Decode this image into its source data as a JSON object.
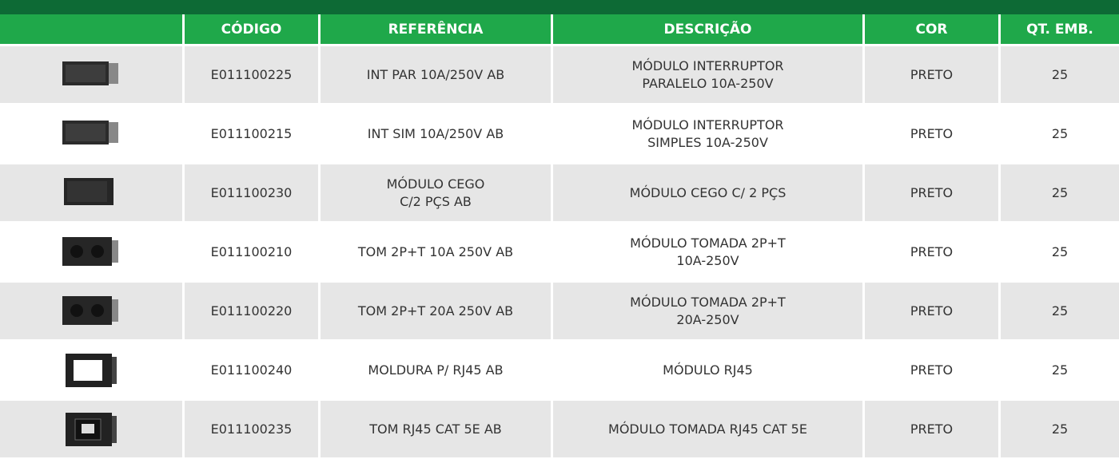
{
  "table": {
    "header": [
      "CÓDIGO",
      "REFERÊNCIA",
      "DESCRIÇÃO",
      "COR",
      "QT. EMB."
    ],
    "rows": [
      [
        "E011100225",
        "INT PAR 10A/250V AB",
        "MÓDULO INTERRUPTOR\nPARALELO 10A-250V",
        "PRETO",
        "25"
      ],
      [
        "E011100215",
        "INT SIM 10A/250V AB",
        "MÓDULO INTERRUPTOR\nSIMPLES 10A-250V",
        "PRETO",
        "25"
      ],
      [
        "E011100230",
        "MÓDULO CEGO\nC/2 PÇS AB",
        "MÓDULO CEGO C/ 2 PÇS",
        "PRETO",
        "25"
      ],
      [
        "E011100210",
        "TOM 2P+T 10A 250V AB",
        "MÓDULO TOMADA 2P+T\n10A-250V",
        "PRETO",
        "25"
      ],
      [
        "E011100220",
        "TOM 2P+T 20A 250V AB",
        "MÓDULO TOMADA 2P+T\n20A-250V",
        "PRETO",
        "25"
      ],
      [
        "E011100240",
        "MOLDURA P/ RJ45 AB",
        "MÓDULO RJ45",
        "PRETO",
        "25"
      ],
      [
        "E011100235",
        "TOM RJ45 CAT 5E AB",
        "MÓDULO TOMADA RJ45 CAT 5E",
        "PRETO",
        "25"
      ]
    ]
  }
}
